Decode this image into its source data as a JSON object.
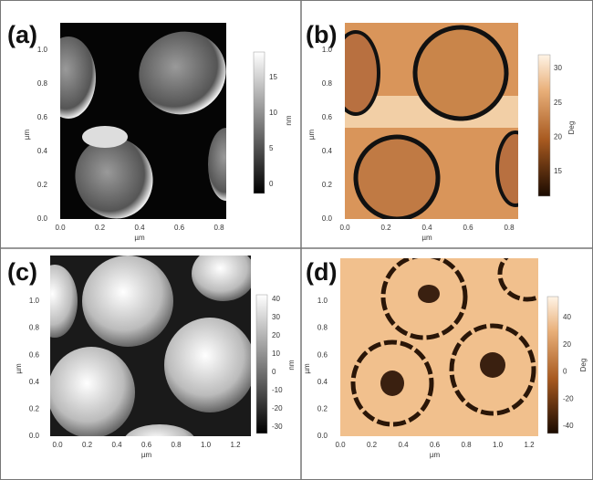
{
  "panels": [
    {
      "label": "(a)",
      "x_axis_label": "µm",
      "y_axis_label": "µm",
      "xticks": [
        "0.0",
        "0.2",
        "0.4",
        "0.6",
        "0.8"
      ],
      "yticks": [
        "0.0",
        "0.2",
        "0.4",
        "0.6",
        "0.8",
        "1.0"
      ],
      "colorbar_ticks": [
        "15",
        "10",
        "5",
        "0"
      ],
      "colorbar_label": "nm"
    },
    {
      "label": "(b)",
      "x_axis_label": "µm",
      "y_axis_label": "µm",
      "xticks": [
        "0.0",
        "0.2",
        "0.4",
        "0.6",
        "0.8"
      ],
      "yticks": [
        "0.0",
        "0.2",
        "0.4",
        "0.6",
        "0.8",
        "1.0"
      ],
      "colorbar_ticks": [
        "30",
        "25",
        "20",
        "15"
      ],
      "colorbar_label": "Deg"
    },
    {
      "label": "(c)",
      "x_axis_label": "µm",
      "y_axis_label": "µm",
      "xticks": [
        "0.0",
        "0.2",
        "0.4",
        "0.6",
        "0.8",
        "1.0",
        "1.2"
      ],
      "yticks": [
        "0.0",
        "0.2",
        "0.4",
        "0.6",
        "0.8",
        "1.0"
      ],
      "colorbar_ticks": [
        "40",
        "30",
        "20",
        "10",
        "0",
        "-10",
        "-20",
        "-30"
      ],
      "colorbar_label": "nm"
    },
    {
      "label": "(d)",
      "x_axis_label": "µm",
      "y_axis_label": "µm",
      "xticks": [
        "0.0",
        "0.2",
        "0.4",
        "0.6",
        "0.8",
        "1.0",
        "1.2"
      ],
      "yticks": [
        "0.0",
        "0.2",
        "0.4",
        "0.6",
        "0.8",
        "1.0"
      ],
      "colorbar_ticks": [
        "40",
        "20",
        "0",
        "-20",
        "-40"
      ],
      "colorbar_label": "Deg"
    }
  ]
}
